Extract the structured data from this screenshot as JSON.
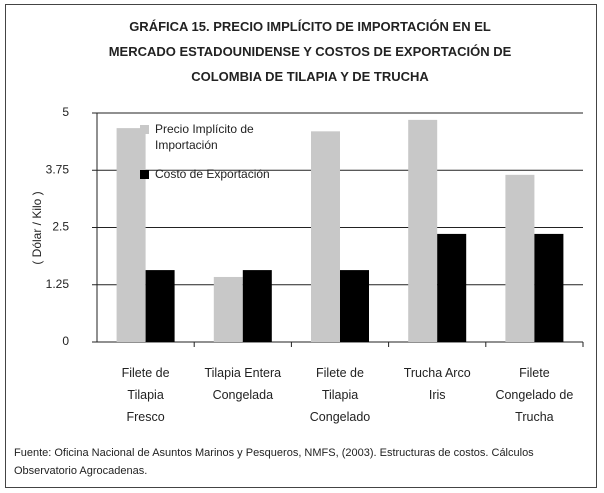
{
  "chart_data": {
    "type": "bar",
    "title": "GRÁFICA 15. PRECIO IMPLÍCITO DE IMPORTACIÓN EN EL MERCADO ESTADOUNIDENSE Y COSTOS DE EXPORTACIÓN DE COLOMBIA DE TILAPIA Y DE TRUCHA",
    "y_label": "( Dólar / Kilo )",
    "source": "Fuente: Oficina Nacional de Asuntos Marinos y Pesqueros, NMFS, (2003). Estructuras de costos. Cálculos Observatorio Agrocadenas.",
    "categories": [
      "Filete de\nTilapia\nFresco",
      "Tilapia Entera\nCongelada",
      "Filete de\nTilapia\nCongelado",
      "Trucha Arco\nIris",
      "Filete\nCongelado de\nTrucha"
    ],
    "series": [
      {
        "name": "Precio Implícito de Importación",
        "color": "#c8c8c8",
        "values": [
          4.67,
          1.42,
          4.6,
          4.85,
          3.65
        ]
      },
      {
        "name": "Costo de Exportación",
        "color": "#000000",
        "values": [
          1.57,
          1.57,
          1.57,
          2.36,
          2.36
        ]
      }
    ],
    "ylim": [
      0,
      5
    ],
    "yticks": [
      0,
      1.25,
      2.5,
      3.75,
      5
    ],
    "grid": true,
    "legend": "top-left"
  }
}
